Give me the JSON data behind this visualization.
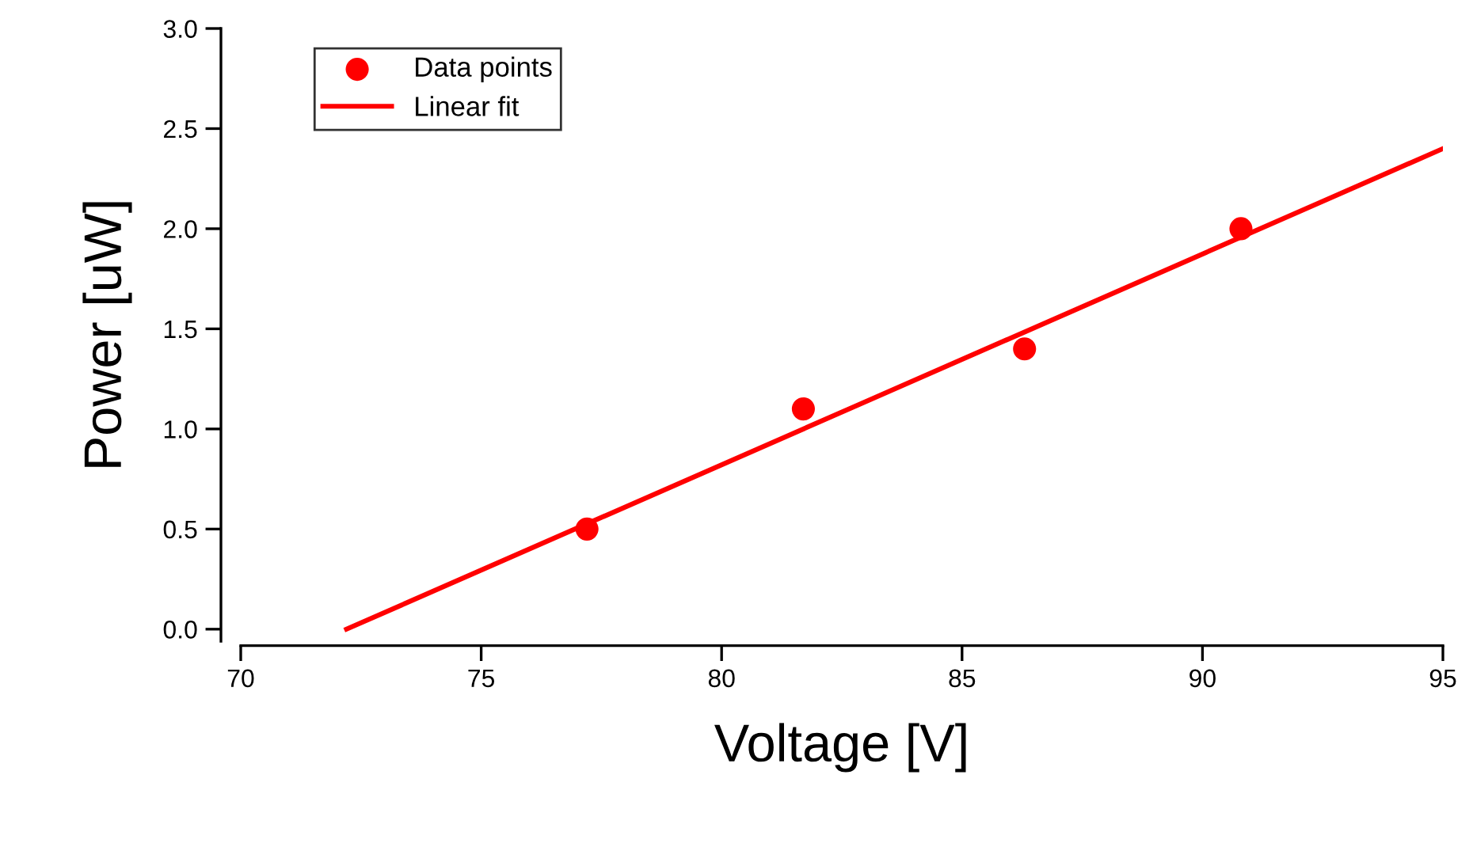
{
  "chart_data": {
    "type": "scatter",
    "xlabel": "Voltage [V]",
    "ylabel": "Power [uW]",
    "xlim": [
      70,
      95
    ],
    "ylim": [
      -0.06,
      3.0
    ],
    "xticks": [
      70,
      75,
      80,
      85,
      90,
      95
    ],
    "yticks": [
      {
        "value": 0,
        "label": "0.0"
      },
      {
        "value": 0.5,
        "label": "0.5"
      },
      {
        "value": 1,
        "label": "1.0"
      },
      {
        "value": 1.5,
        "label": "1.5"
      },
      {
        "value": 2,
        "label": "2.0"
      },
      {
        "value": 2.5,
        "label": "2.5"
      },
      {
        "value": 3,
        "label": "3.0"
      }
    ],
    "grid": false,
    "legend": "top left",
    "series": [
      {
        "name": "Data points",
        "color": "#ff0000",
        "marker": "circle",
        "x": [
          77.2,
          81.7,
          86.3,
          90.8
        ],
        "values": [
          0.5,
          1.1,
          1.4,
          2.0
        ]
      },
      {
        "name": "Linear fit",
        "type": "line",
        "color": "#ff0000",
        "line_style": "solid",
        "x": [
          72.2,
          95
        ],
        "values": [
          0,
          2.4
        ]
      }
    ]
  }
}
